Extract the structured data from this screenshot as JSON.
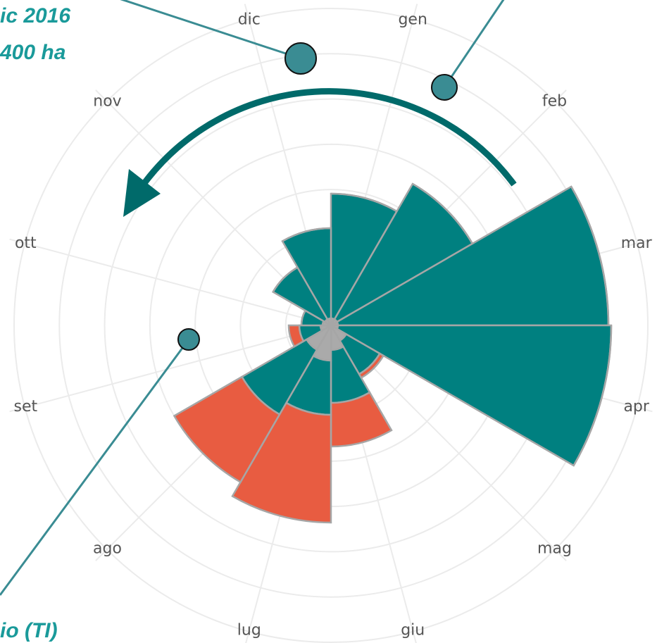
{
  "chart_data": {
    "type": "polar_stacked_bar",
    "categories": [
      "gen",
      "feb",
      "mar",
      "apr",
      "mag",
      "giu",
      "lug",
      "ago",
      "set",
      "ott",
      "nov",
      "dic"
    ],
    "series": [
      {
        "color": "#aaaaaa",
        "values": [
          10,
          10,
          10,
          10,
          25,
          35,
          50,
          40,
          15,
          12,
          10,
          10
        ]
      },
      {
        "color": "#008080",
        "values": [
          177,
          222,
          384,
          388,
          55,
          75,
          77,
          106,
          30,
          30,
          85,
          128
        ]
      },
      {
        "color": "#e85c41",
        "values": [
          0,
          0,
          0,
          0,
          6,
          62,
          153,
          111,
          15,
          0,
          0,
          0
        ]
      }
    ],
    "ylim": [
      0,
      450
    ],
    "grid": true,
    "annotations": [
      "ic 2016",
      "400 ha",
      "io (TI)"
    ]
  }
}
